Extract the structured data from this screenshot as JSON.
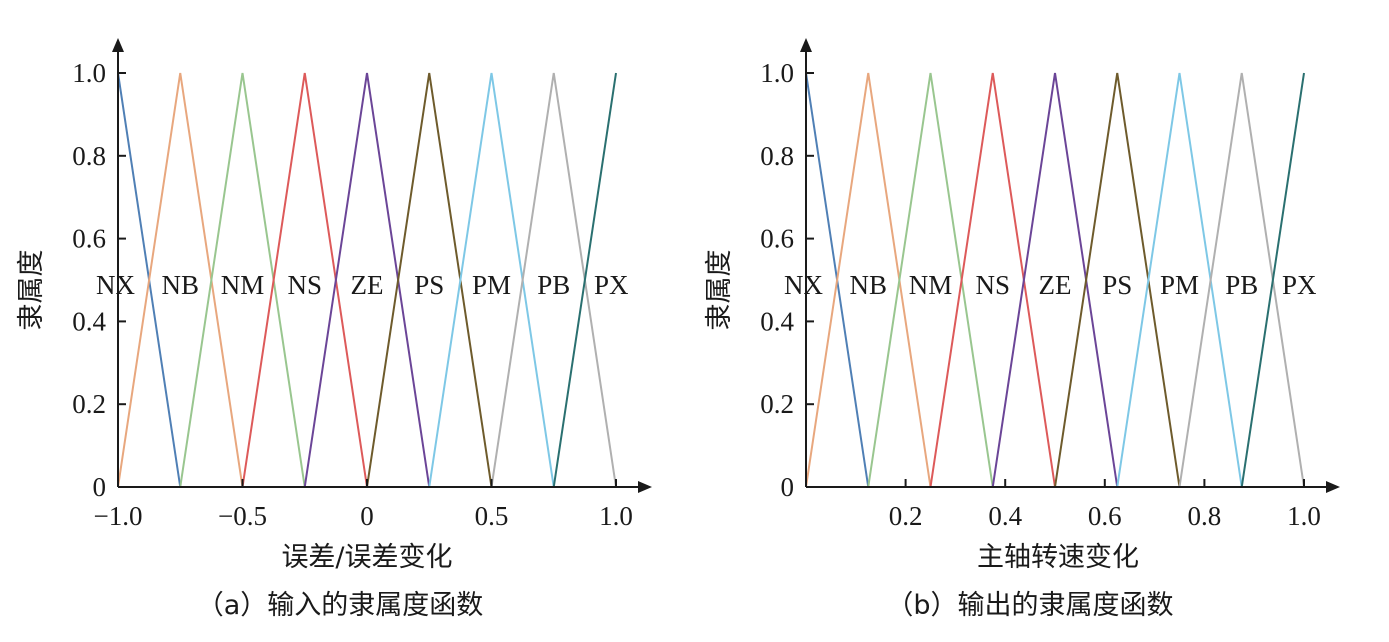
{
  "chart_data": [
    {
      "type": "line",
      "caption": "（a）输入的隶属度函数",
      "xlabel": "误差/误差变化",
      "ylabel": "隶属度",
      "xlim": [
        -1.0,
        1.0
      ],
      "ylim": [
        0,
        1.0
      ],
      "xticks": [
        -1.0,
        -0.5,
        0,
        0.5,
        1.0
      ],
      "xtick_labels": [
        "−1.0",
        "−0.5",
        "0",
        "0.5",
        "1.0"
      ],
      "yticks": [
        0,
        0.2,
        0.4,
        0.6,
        0.8,
        1.0
      ],
      "ytick_labels": [
        "0",
        "0.2",
        "0.4",
        "0.6",
        "0.8",
        "1.0"
      ],
      "grid": false,
      "series": [
        {
          "name": "NX",
          "color": "#4f7fb5",
          "x": [
            -1.0,
            -0.75
          ],
          "y": [
            1.0,
            0
          ]
        },
        {
          "name": "NB",
          "color": "#e8a77e",
          "x": [
            -1.0,
            -0.75,
            -0.5
          ],
          "y": [
            0,
            1.0,
            0
          ]
        },
        {
          "name": "NM",
          "color": "#99c68f",
          "x": [
            -0.75,
            -0.5,
            -0.25
          ],
          "y": [
            0,
            1.0,
            0
          ]
        },
        {
          "name": "NS",
          "color": "#dd5a5a",
          "x": [
            -0.5,
            -0.25,
            0
          ],
          "y": [
            0,
            1.0,
            0
          ]
        },
        {
          "name": "ZE",
          "color": "#6b4597",
          "x": [
            -0.25,
            0,
            0.25
          ],
          "y": [
            0,
            1.0,
            0
          ]
        },
        {
          "name": "PS",
          "color": "#6e5b2c",
          "x": [
            0,
            0.25,
            0.5
          ],
          "y": [
            0,
            1.0,
            0
          ]
        },
        {
          "name": "PM",
          "color": "#7ec8e6",
          "x": [
            0.25,
            0.5,
            0.75
          ],
          "y": [
            0,
            1.0,
            0
          ]
        },
        {
          "name": "PB",
          "color": "#b0b0b0",
          "x": [
            0.5,
            0.75,
            1.0
          ],
          "y": [
            0,
            1.0,
            0
          ]
        },
        {
          "name": "PX",
          "color": "#2a7070",
          "x": [
            0.75,
            1.0
          ],
          "y": [
            0,
            1.0
          ]
        }
      ]
    },
    {
      "type": "line",
      "caption": "（b）输出的隶属度函数",
      "xlabel": "主轴转速变化",
      "ylabel": "隶属度",
      "xlim": [
        0,
        1.0
      ],
      "ylim": [
        0,
        1.0
      ],
      "xticks": [
        0.2,
        0.4,
        0.6,
        0.8,
        1.0
      ],
      "xtick_labels": [
        "0.2",
        "0.4",
        "0.6",
        "0.8",
        "1.0"
      ],
      "yticks": [
        0,
        0.2,
        0.4,
        0.6,
        0.8,
        1.0
      ],
      "ytick_labels": [
        "0",
        "0.2",
        "0.4",
        "0.6",
        "0.8",
        "1.0"
      ],
      "grid": false,
      "series": [
        {
          "name": "NX",
          "color": "#4f7fb5",
          "x": [
            0,
            0.125
          ],
          "y": [
            1.0,
            0
          ]
        },
        {
          "name": "NB",
          "color": "#e8a77e",
          "x": [
            0,
            0.125,
            0.25
          ],
          "y": [
            0,
            1.0,
            0
          ]
        },
        {
          "name": "NM",
          "color": "#99c68f",
          "x": [
            0.125,
            0.25,
            0.375
          ],
          "y": [
            0,
            1.0,
            0
          ]
        },
        {
          "name": "NS",
          "color": "#dd5a5a",
          "x": [
            0.25,
            0.375,
            0.5
          ],
          "y": [
            0,
            1.0,
            0
          ]
        },
        {
          "name": "ZE",
          "color": "#6b4597",
          "x": [
            0.375,
            0.5,
            0.625
          ],
          "y": [
            0,
            1.0,
            0
          ]
        },
        {
          "name": "PS",
          "color": "#6e5b2c",
          "x": [
            0.5,
            0.625,
            0.75
          ],
          "y": [
            0,
            1.0,
            0
          ]
        },
        {
          "name": "PM",
          "color": "#7ec8e6",
          "x": [
            0.625,
            0.75,
            0.875
          ],
          "y": [
            0,
            1.0,
            0
          ]
        },
        {
          "name": "PB",
          "color": "#b0b0b0",
          "x": [
            0.75,
            0.875,
            1.0
          ],
          "y": [
            0,
            1.0,
            0
          ]
        },
        {
          "name": "PX",
          "color": "#2a7070",
          "x": [
            0.875,
            1.0
          ],
          "y": [
            0,
            1.0
          ]
        }
      ]
    }
  ]
}
